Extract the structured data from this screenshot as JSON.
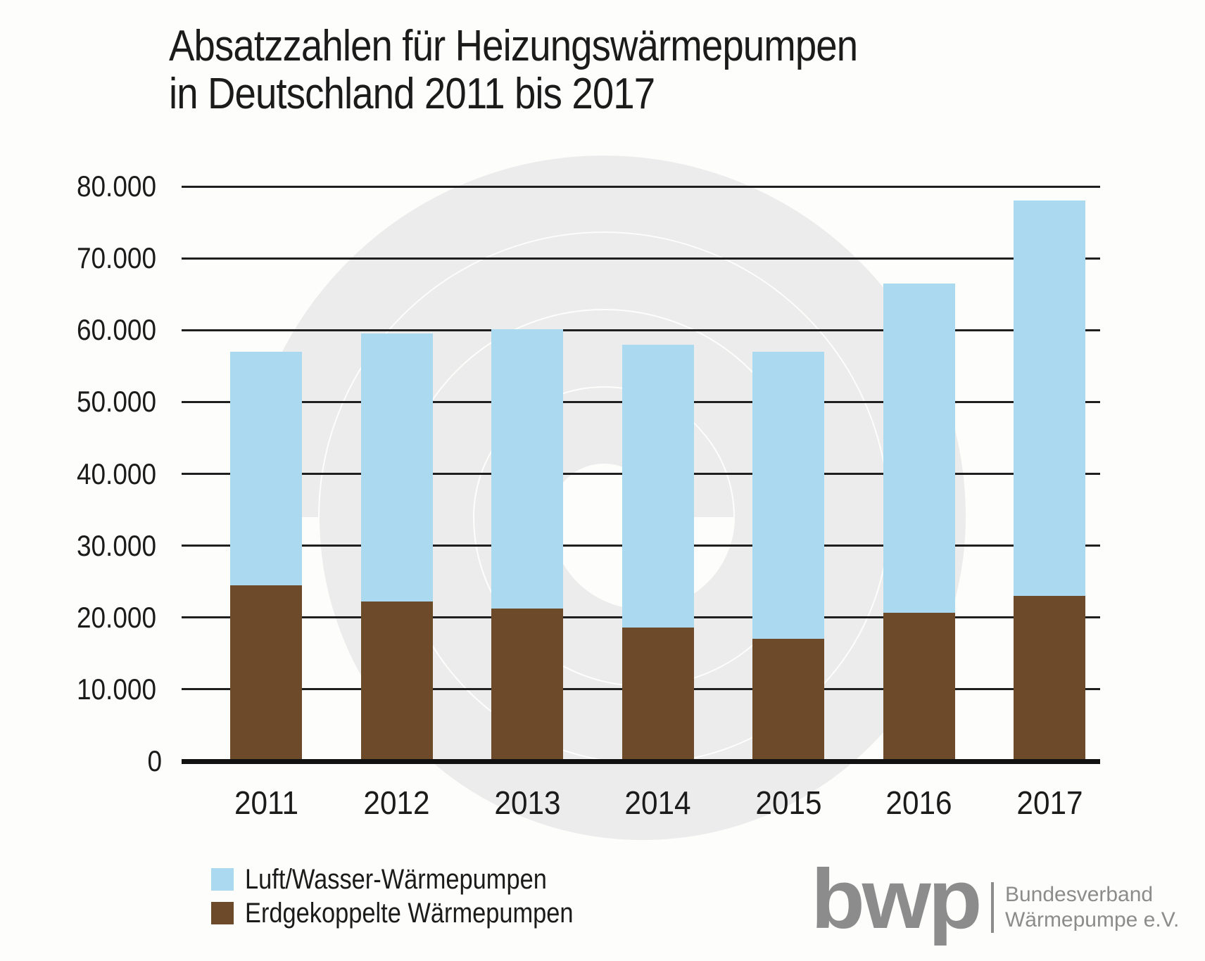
{
  "title": {
    "line1": "Absatzzahlen für Heizungswärmepumpen",
    "line2": "in Deutschland 2011 bis 2017"
  },
  "chart_data": {
    "type": "bar",
    "stacked": true,
    "title": "Absatzzahlen für Heizungswärmepumpen in Deutschland 2011 bis 2017",
    "categories": [
      "2011",
      "2012",
      "2013",
      "2014",
      "2015",
      "2016",
      "2017"
    ],
    "series": [
      {
        "name": "Luft/Wasser-Wärmepumpen",
        "color": "#aad9f0",
        "values": [
          32500,
          37300,
          38900,
          39400,
          40000,
          45800,
          55000
        ]
      },
      {
        "name": "Erdgekoppelte Wärmepumpen",
        "color": "#6d4b2a",
        "values": [
          24500,
          22200,
          21200,
          18600,
          17000,
          20700,
          23000
        ]
      }
    ],
    "totals": [
      57000,
      59500,
      60100,
      58000,
      57000,
      66500,
      78000
    ],
    "xlabel": "",
    "ylabel": "",
    "ylim": [
      0,
      80000
    ],
    "ytick_step": 10000,
    "yticks": [
      "0",
      "10.000",
      "20.000",
      "30.000",
      "40.000",
      "50.000",
      "60.000",
      "70.000",
      "80.000"
    ],
    "grid": "horizontal",
    "legend_position": "bottom-left"
  },
  "legend": {
    "items": [
      {
        "label": "Luft/Wasser-Wärmepumpen",
        "color": "#aad9f0"
      },
      {
        "label": "Erdgekoppelte Wärmepumpen",
        "color": "#6d4b2a"
      }
    ]
  },
  "logo": {
    "mark": "bwp",
    "org_line1": "Bundesverband",
    "org_line2": "Wärmepumpe e.V."
  },
  "colors": {
    "air_water": "#aad9f0",
    "ground_coupled": "#6d4b2a",
    "gridline": "#1f1f1f",
    "text": "#1b1b1b",
    "logo_gray": "#8c8c8c",
    "watermark": "#ececec",
    "background": "#fdfdfb"
  }
}
